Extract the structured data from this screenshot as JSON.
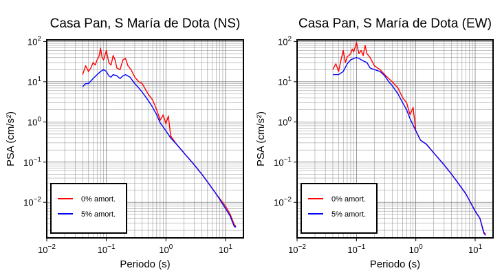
{
  "chart_data": [
    {
      "type": "line",
      "title": "Casa Pan, S María de Dota (NS)",
      "xlabel": "Periodo (s)",
      "ylabel": "PSA (cm/s²)",
      "xscale": "log",
      "yscale": "log",
      "xlim": [
        0.01,
        20
      ],
      "ylim": [
        0.0013,
        110
      ],
      "grid": true,
      "legend_position": "bottom-left",
      "x_ticks": [
        {
          "base": "10",
          "exp": "−2"
        },
        {
          "base": "10",
          "exp": "−1"
        },
        {
          "base": "10",
          "exp": "0"
        },
        {
          "base": "10",
          "exp": "1"
        }
      ],
      "y_ticks": [
        {
          "base": "10",
          "exp": "−2"
        },
        {
          "base": "10",
          "exp": "−1"
        },
        {
          "base": "10",
          "exp": "0"
        },
        {
          "base": "10",
          "exp": "1"
        },
        {
          "base": "10",
          "exp": "2"
        }
      ],
      "series": [
        {
          "name": "0% amort.",
          "color": "#ff0000",
          "points": [
            [
              0.04,
              15
            ],
            [
              0.045,
              25
            ],
            [
              0.05,
              18
            ],
            [
              0.055,
              22
            ],
            [
              0.06,
              30
            ],
            [
              0.065,
              26
            ],
            [
              0.07,
              35
            ],
            [
              0.075,
              42
            ],
            [
              0.08,
              68
            ],
            [
              0.085,
              40
            ],
            [
              0.09,
              35
            ],
            [
              0.1,
              60
            ],
            [
              0.11,
              30
            ],
            [
              0.12,
              26
            ],
            [
              0.13,
              45
            ],
            [
              0.14,
              35
            ],
            [
              0.15,
              22
            ],
            [
              0.17,
              20
            ],
            [
              0.19,
              35
            ],
            [
              0.21,
              38
            ],
            [
              0.23,
              25
            ],
            [
              0.26,
              20
            ],
            [
              0.3,
              13
            ],
            [
              0.35,
              10
            ],
            [
              0.4,
              9
            ],
            [
              0.5,
              5
            ],
            [
              0.6,
              3.5
            ],
            [
              0.7,
              2
            ],
            [
              0.8,
              1.1
            ],
            [
              0.9,
              1.5
            ],
            [
              1.0,
              0.9
            ],
            [
              1.1,
              1.4
            ],
            [
              1.2,
              0.45
            ],
            [
              1.5,
              0.28
            ],
            [
              2,
              0.17
            ],
            [
              3,
              0.085
            ],
            [
              4,
              0.05
            ],
            [
              5,
              0.032
            ],
            [
              7,
              0.016
            ],
            [
              10,
              0.008
            ],
            [
              12,
              0.005
            ],
            [
              14,
              0.0028
            ],
            [
              15,
              0.0025
            ]
          ]
        },
        {
          "name": "5% amort.",
          "color": "#0000ff",
          "points": [
            [
              0.04,
              7.5
            ],
            [
              0.045,
              9
            ],
            [
              0.05,
              9
            ],
            [
              0.06,
              12
            ],
            [
              0.07,
              15
            ],
            [
              0.08,
              18
            ],
            [
              0.09,
              20
            ],
            [
              0.1,
              18
            ],
            [
              0.11,
              14
            ],
            [
              0.12,
              13
            ],
            [
              0.13,
              15
            ],
            [
              0.15,
              14
            ],
            [
              0.17,
              12
            ],
            [
              0.19,
              14
            ],
            [
              0.21,
              15
            ],
            [
              0.25,
              13
            ],
            [
              0.3,
              9
            ],
            [
              0.35,
              7
            ],
            [
              0.4,
              5.5
            ],
            [
              0.5,
              3.5
            ],
            [
              0.6,
              2.3
            ],
            [
              0.7,
              1.5
            ],
            [
              0.8,
              0.95
            ],
            [
              1.0,
              0.6
            ],
            [
              1.2,
              0.4
            ],
            [
              1.5,
              0.28
            ],
            [
              2,
              0.17
            ],
            [
              3,
              0.085
            ],
            [
              4,
              0.05
            ],
            [
              5,
              0.032
            ],
            [
              7,
              0.016
            ],
            [
              10,
              0.007
            ],
            [
              12,
              0.0045
            ],
            [
              14,
              0.0025
            ],
            [
              15,
              0.0024
            ]
          ]
        }
      ]
    },
    {
      "type": "line",
      "title": "Casa Pan, S María de Dota (EW)",
      "xlabel": "Periodo (s)",
      "ylabel": "PSA (cm/s²)",
      "xscale": "log",
      "yscale": "log",
      "xlim": [
        0.01,
        20
      ],
      "ylim": [
        0.0013,
        110
      ],
      "grid": true,
      "legend_position": "bottom-left",
      "x_ticks": [
        {
          "base": "10",
          "exp": "−2"
        },
        {
          "base": "10",
          "exp": "−1"
        },
        {
          "base": "10",
          "exp": "0"
        },
        {
          "base": "10",
          "exp": "1"
        }
      ],
      "y_ticks": [
        {
          "base": "10",
          "exp": "−2"
        },
        {
          "base": "10",
          "exp": "−1"
        },
        {
          "base": "10",
          "exp": "0"
        },
        {
          "base": "10",
          "exp": "1"
        },
        {
          "base": "10",
          "exp": "2"
        }
      ],
      "series": [
        {
          "name": "0% amort.",
          "color": "#ff0000",
          "points": [
            [
              0.04,
              20
            ],
            [
              0.045,
              28
            ],
            [
              0.05,
              18
            ],
            [
              0.055,
              35
            ],
            [
              0.06,
              60
            ],
            [
              0.065,
              30
            ],
            [
              0.07,
              42
            ],
            [
              0.075,
              45
            ],
            [
              0.08,
              50
            ],
            [
              0.085,
              65
            ],
            [
              0.09,
              55
            ],
            [
              0.1,
              95
            ],
            [
              0.11,
              50
            ],
            [
              0.12,
              60
            ],
            [
              0.13,
              45
            ],
            [
              0.14,
              80
            ],
            [
              0.15,
              50
            ],
            [
              0.17,
              40
            ],
            [
              0.2,
              25
            ],
            [
              0.25,
              20
            ],
            [
              0.3,
              15
            ],
            [
              0.35,
              12
            ],
            [
              0.4,
              10
            ],
            [
              0.5,
              7
            ],
            [
              0.6,
              4
            ],
            [
              0.7,
              3
            ],
            [
              0.8,
              1.5
            ],
            [
              0.9,
              2.3
            ],
            [
              1.0,
              0.6
            ],
            [
              1.2,
              0.35
            ],
            [
              1.5,
              0.28
            ],
            [
              2,
              0.17
            ],
            [
              3,
              0.085
            ],
            [
              4,
              0.05
            ],
            [
              5,
              0.032
            ],
            [
              7,
              0.016
            ],
            [
              10,
              0.006
            ],
            [
              12,
              0.004
            ],
            [
              14,
              0.0018
            ],
            [
              15,
              0.0016
            ]
          ]
        },
        {
          "name": "5% amort.",
          "color": "#0000ff",
          "points": [
            [
              0.04,
              15
            ],
            [
              0.05,
              15
            ],
            [
              0.06,
              18
            ],
            [
              0.07,
              28
            ],
            [
              0.08,
              35
            ],
            [
              0.09,
              38
            ],
            [
              0.1,
              40
            ],
            [
              0.11,
              38
            ],
            [
              0.13,
              33
            ],
            [
              0.15,
              30
            ],
            [
              0.17,
              22
            ],
            [
              0.2,
              20
            ],
            [
              0.25,
              18
            ],
            [
              0.3,
              14
            ],
            [
              0.35,
              10
            ],
            [
              0.4,
              8
            ],
            [
              0.5,
              5
            ],
            [
              0.6,
              3
            ],
            [
              0.7,
              2
            ],
            [
              0.8,
              1.2
            ],
            [
              1.0,
              0.6
            ],
            [
              1.2,
              0.35
            ],
            [
              1.5,
              0.28
            ],
            [
              2,
              0.17
            ],
            [
              3,
              0.085
            ],
            [
              4,
              0.05
            ],
            [
              5,
              0.032
            ],
            [
              7,
              0.016
            ],
            [
              10,
              0.006
            ],
            [
              12,
              0.004
            ],
            [
              14,
              0.0017
            ],
            [
              15,
              0.0015
            ]
          ]
        }
      ]
    }
  ]
}
